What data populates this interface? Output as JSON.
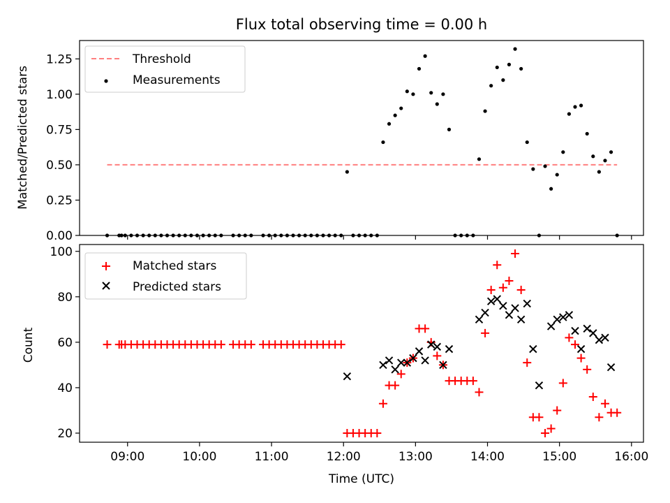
{
  "figure": {
    "title": "Flux total observing time = 0.00 h",
    "xlabel": "Time (UTC)",
    "xticks": [
      "09:00",
      "10:00",
      "11:00",
      "12:00",
      "13:00",
      "14:00",
      "15:00",
      "16:00"
    ],
    "colors": {
      "threshold": "#ff7f7f",
      "measurements": "#000000",
      "matched": "#ff0000",
      "predicted": "#000000"
    }
  },
  "chart_data": [
    {
      "type": "scatter",
      "ylabel": "Matched/Predicted stars",
      "xlim": [
        "08:20",
        "16:10"
      ],
      "ylim": [
        0,
        1.38
      ],
      "yticks": [
        "0.00",
        "0.25",
        "0.50",
        "0.75",
        "1.00",
        "1.25"
      ],
      "legend_position": "top-left",
      "grid": false,
      "series": [
        {
          "name": "Threshold",
          "kind": "dashed-line",
          "x": [
            "08:43",
            "15:48"
          ],
          "y": [
            0.5,
            0.5
          ]
        },
        {
          "name": "Measurements",
          "kind": "points",
          "x": [
            "08:43",
            "08:53",
            "08:55",
            "08:58",
            "09:03",
            "09:08",
            "09:13",
            "09:18",
            "09:23",
            "09:28",
            "09:33",
            "09:38",
            "09:43",
            "09:48",
            "09:53",
            "09:58",
            "10:03",
            "10:08",
            "10:13",
            "10:18",
            "10:28",
            "10:33",
            "10:38",
            "10:43",
            "10:53",
            "10:58",
            "11:03",
            "11:08",
            "11:13",
            "11:18",
            "11:23",
            "11:28",
            "11:33",
            "11:38",
            "11:43",
            "11:48",
            "11:53",
            "11:58",
            "12:03",
            "12:08",
            "12:13",
            "12:18",
            "12:23",
            "12:28",
            "12:33",
            "12:38",
            "12:43",
            "12:48",
            "12:53",
            "12:58",
            "13:03",
            "13:08",
            "13:13",
            "13:18",
            "13:23",
            "13:28",
            "13:33",
            "13:38",
            "13:43",
            "13:48",
            "13:53",
            "13:58",
            "14:03",
            "14:08",
            "14:13",
            "14:18",
            "14:23",
            "14:28",
            "14:33",
            "14:38",
            "14:43",
            "14:48",
            "14:53",
            "14:58",
            "15:03",
            "15:08",
            "15:13",
            "15:18",
            "15:23",
            "15:28",
            "15:33",
            "15:38",
            "15:43",
            "15:48"
          ],
          "y": [
            0,
            0,
            0,
            0,
            0,
            0,
            0,
            0,
            0,
            0,
            0,
            0,
            0,
            0,
            0,
            0,
            0,
            0,
            0,
            0,
            0,
            0,
            0,
            0,
            0,
            0,
            0,
            0,
            0,
            0,
            0,
            0,
            0,
            0,
            0,
            0,
            0,
            0,
            0.45,
            0,
            0,
            0,
            0,
            0,
            0.66,
            0.79,
            0.85,
            0.9,
            1.02,
            1.0,
            1.18,
            1.27,
            1.01,
            0.93,
            1.0,
            0.75,
            0,
            0,
            0,
            0,
            0.54,
            0.88,
            1.06,
            1.19,
            1.1,
            1.21,
            1.32,
            1.18,
            0.66,
            0.47,
            0,
            0.49,
            0.33,
            0.43,
            0.59,
            0.86,
            0.91,
            0.92,
            0.72,
            0.56,
            0.45,
            0.53,
            0.59,
            0
          ]
        }
      ]
    },
    {
      "type": "scatter",
      "ylabel": "Count",
      "xlim": [
        "08:20",
        "16:10"
      ],
      "ylim": [
        16,
        103
      ],
      "yticks": [
        "20",
        "40",
        "60",
        "80",
        "100"
      ],
      "legend_position": "top-left",
      "grid": false,
      "series": [
        {
          "name": "Matched stars",
          "marker": "plus",
          "x": [
            "08:43",
            "08:53",
            "08:55",
            "08:58",
            "09:03",
            "09:08",
            "09:13",
            "09:18",
            "09:23",
            "09:28",
            "09:33",
            "09:38",
            "09:43",
            "09:48",
            "09:53",
            "09:58",
            "10:03",
            "10:08",
            "10:13",
            "10:18",
            "10:28",
            "10:33",
            "10:38",
            "10:43",
            "10:53",
            "10:58",
            "11:03",
            "11:08",
            "11:13",
            "11:18",
            "11:23",
            "11:28",
            "11:33",
            "11:38",
            "11:43",
            "11:48",
            "11:53",
            "11:58",
            "12:03",
            "12:08",
            "12:13",
            "12:18",
            "12:23",
            "12:28",
            "12:33",
            "12:38",
            "12:43",
            "12:48",
            "12:53",
            "12:58",
            "13:03",
            "13:08",
            "13:13",
            "13:18",
            "13:23",
            "13:28",
            "13:33",
            "13:38",
            "13:43",
            "13:48",
            "13:53",
            "13:58",
            "14:03",
            "14:08",
            "14:13",
            "14:18",
            "14:23",
            "14:28",
            "14:33",
            "14:38",
            "14:43",
            "14:48",
            "14:53",
            "14:58",
            "15:03",
            "15:08",
            "15:13",
            "15:18",
            "15:23",
            "15:28",
            "15:33",
            "15:38",
            "15:43",
            "15:48"
          ],
          "y": [
            59,
            59,
            59,
            59,
            59,
            59,
            59,
            59,
            59,
            59,
            59,
            59,
            59,
            59,
            59,
            59,
            59,
            59,
            59,
            59,
            59,
            59,
            59,
            59,
            59,
            59,
            59,
            59,
            59,
            59,
            59,
            59,
            59,
            59,
            59,
            59,
            59,
            59,
            20,
            20,
            20,
            20,
            20,
            20,
            33,
            41,
            41,
            46,
            51,
            53,
            66,
            66,
            60,
            54,
            50,
            43,
            43,
            43,
            43,
            43,
            38,
            64,
            83,
            94,
            84,
            87,
            99,
            83,
            51,
            27,
            27,
            20,
            22,
            30,
            42,
            62,
            59,
            53,
            48,
            36,
            27,
            33,
            29,
            29
          ]
        },
        {
          "name": "Predicted stars",
          "marker": "x",
          "x": [
            "12:03",
            "12:33",
            "12:38",
            "12:43",
            "12:48",
            "12:53",
            "12:58",
            "13:03",
            "13:08",
            "13:13",
            "13:18",
            "13:23",
            "13:28",
            "13:53",
            "13:58",
            "14:03",
            "14:08",
            "14:13",
            "14:18",
            "14:23",
            "14:28",
            "14:33",
            "14:38",
            "14:43",
            "14:53",
            "14:58",
            "15:03",
            "15:08",
            "15:13",
            "15:18",
            "15:23",
            "15:28",
            "15:33",
            "15:38",
            "15:43"
          ],
          "y": [
            45,
            50,
            52,
            48,
            51,
            51,
            53,
            56,
            52,
            59,
            58,
            50,
            57,
            70,
            73,
            78,
            79,
            76,
            72,
            75,
            70,
            77,
            57,
            41,
            67,
            70,
            71,
            72,
            65,
            57,
            66,
            64,
            61,
            62,
            49
          ]
        }
      ]
    }
  ]
}
